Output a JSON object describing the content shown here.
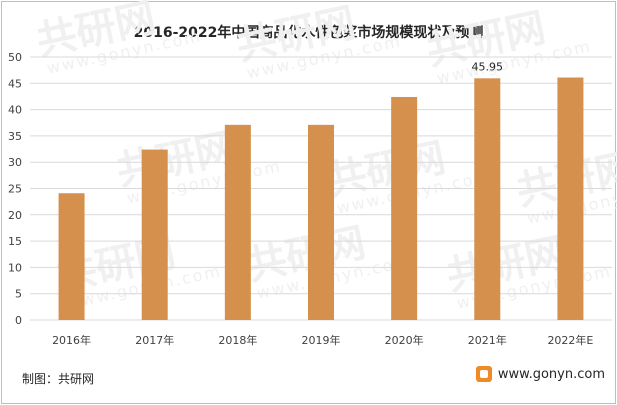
{
  "chart_data": {
    "type": "bar",
    "title": "2016-2022年中国商品化水性色浆市场规模现状及预测",
    "categories": [
      "2016年",
      "2017年",
      "2018年",
      "2019年",
      "2020年",
      "2021年",
      "2022年E"
    ],
    "values": [
      24.1,
      32.4,
      37.1,
      37.1,
      42.4,
      45.95,
      46.1
    ],
    "data_labels": [
      null,
      null,
      null,
      null,
      null,
      "45.95",
      null
    ],
    "ylim": [
      0,
      50
    ],
    "yticks": [
      0,
      5,
      10,
      15,
      20,
      25,
      30,
      35,
      40,
      45,
      50
    ],
    "ylabel": "",
    "xlabel": "",
    "grid": true,
    "bar_color": "#d5904e",
    "grid_color": "#d9d9d9"
  },
  "footer": {
    "source": "制图：共研网",
    "website": "www.gonyn.com"
  },
  "watermark": {
    "text": "共研网",
    "url": "www.gonyn.com"
  }
}
